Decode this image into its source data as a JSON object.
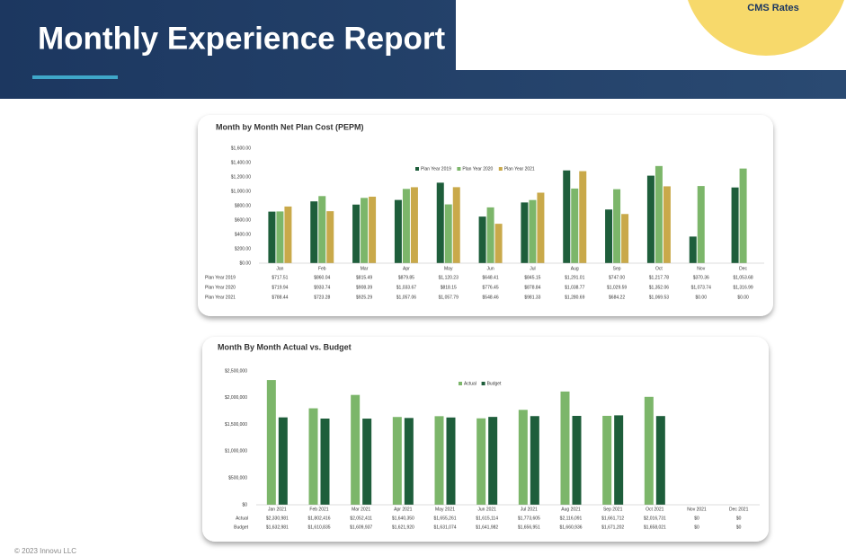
{
  "header": {
    "title": "Monthly Experience Report",
    "badge": "CMS Rates"
  },
  "footer": "© 2023 Innovu LLC",
  "chart_data": [
    {
      "type": "bar",
      "title": "Month by Month Net Plan Cost (PEPM)",
      "categories": [
        "Jan",
        "Feb",
        "Mar",
        "Apr",
        "May",
        "Jun",
        "Jul",
        "Aug",
        "Sep",
        "Oct",
        "Nov",
        "Dec"
      ],
      "series": [
        {
          "name": "Plan Year 2019",
          "color": "#1e5e3b",
          "values": [
            717.51,
            860.04,
            815.49,
            879.85,
            1120.23,
            648.41,
            845.15,
            1291.01,
            747.0,
            1217.78,
            370.36,
            1053.68
          ],
          "value_labels": [
            "$717.51",
            "$860.04",
            "$815.49",
            "$879.85",
            "$1,120.23",
            "$648.41",
            "$845.15",
            "$1,291.01",
            "$747.00",
            "$1,217.78",
            "$370.36",
            "$1,053.68"
          ]
        },
        {
          "name": "Plan Year 2020",
          "color": "#7cb66a",
          "values": [
            719.94,
            933.74,
            908.39,
            1033.67,
            818.15,
            776.45,
            878.84,
            1038.77,
            1029.59,
            1352.06,
            1073.74,
            1316.99
          ],
          "value_labels": [
            "$719.94",
            "$933.74",
            "$908.39",
            "$1,033.67",
            "$818.15",
            "$776.45",
            "$878.84",
            "$1,038.77",
            "$1,029.59",
            "$1,352.06",
            "$1,073.74",
            "$1,316.99"
          ]
        },
        {
          "name": "Plan Year 2021",
          "color": "#c9a94a",
          "values": [
            788.44,
            723.28,
            925.29,
            1057.06,
            1057.79,
            548.46,
            981.33,
            1280.69,
            684.22,
            1069.53,
            0,
            0
          ],
          "value_labels": [
            "$788.44",
            "$723.28",
            "$925.29",
            "$1,057.06",
            "$1,057.79",
            "$548.46",
            "$981.33",
            "$1,280.69",
            "$684.22",
            "$1,069.53",
            "$0.00",
            "$0.00"
          ]
        }
      ],
      "ylim": [
        0,
        1600
      ],
      "yticks": [
        {
          "value": 0,
          "label": "$0.00"
        },
        {
          "value": 200,
          "label": "$200.00"
        },
        {
          "value": 400,
          "label": "$400.00"
        },
        {
          "value": 600,
          "label": "$600.00"
        },
        {
          "value": 800,
          "label": "$800.00"
        },
        {
          "value": 1000,
          "label": "$1,000.00"
        },
        {
          "value": 1200,
          "label": "$1,200.00"
        },
        {
          "value": 1400,
          "label": "$1,400.00"
        },
        {
          "value": 1600,
          "label": "$1,600.00"
        }
      ]
    },
    {
      "type": "bar",
      "title": "Month By Month Actual vs. Budget",
      "categories": [
        "Jan 2021",
        "Feb 2021",
        "Mar 2021",
        "Apr 2021",
        "May 2021",
        "Jun 2021",
        "Jul 2021",
        "Aug 2021",
        "Sep 2021",
        "Oct 2021",
        "Nov 2021",
        "Dec 2021"
      ],
      "series": [
        {
          "name": "Actual",
          "color": "#7cb66a",
          "values": [
            2330981,
            1802416,
            2052411,
            1640350,
            1655261,
            1615114,
            1773605,
            2116091,
            1661712,
            2016731,
            0,
            0
          ],
          "value_labels": [
            "$2,330,981",
            "$1,802,416",
            "$2,052,411",
            "$1,640,350",
            "$1,655,261",
            "$1,615,114",
            "$1,773,605",
            "$2,116,091",
            "$1,661,712",
            "$2,016,731",
            "$0",
            "$0"
          ]
        },
        {
          "name": "Budget",
          "color": "#1e5e3b",
          "values": [
            1632981,
            1610835,
            1609937,
            1621920,
            1631074,
            1641982,
            1656951,
            1660936,
            1671202,
            1658021,
            0,
            0
          ],
          "value_labels": [
            "$1,632,981",
            "$1,610,835",
            "$1,609,937",
            "$1,621,920",
            "$1,631,074",
            "$1,641,982",
            "$1,656,951",
            "$1,660,936",
            "$1,671,202",
            "$1,658,021",
            "$0",
            "$0"
          ]
        }
      ],
      "ylim": [
        0,
        2500000
      ],
      "yticks": [
        {
          "value": 0,
          "label": "$0"
        },
        {
          "value": 500000,
          "label": "$500,000"
        },
        {
          "value": 1000000,
          "label": "$1,000,000"
        },
        {
          "value": 1500000,
          "label": "$1,500,000"
        },
        {
          "value": 2000000,
          "label": "$2,000,000"
        },
        {
          "value": 2500000,
          "label": "$2,500,000"
        }
      ]
    }
  ]
}
